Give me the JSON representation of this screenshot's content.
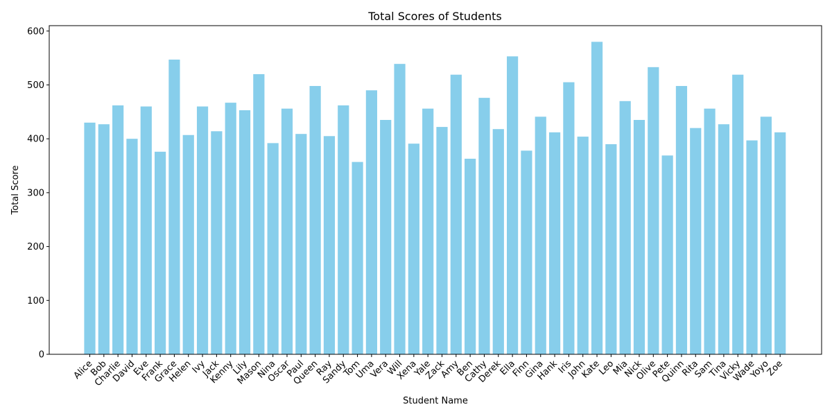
{
  "chart_data": {
    "type": "bar",
    "title": "Total Scores of Students",
    "xlabel": "Student Name",
    "ylabel": "Total Score",
    "ylim": [
      0,
      610
    ],
    "yticks": [
      0,
      100,
      200,
      300,
      400,
      500,
      600
    ],
    "bar_color": "#87ceeb",
    "grid": false,
    "categories": [
      "Alice",
      "Bob",
      "Charlie",
      "David",
      "Eve",
      "Frank",
      "Grace",
      "Helen",
      "Ivy",
      "Jack",
      "Kenny",
      "Lily",
      "Mason",
      "Nina",
      "Oscar",
      "Paul",
      "Queen",
      "Ray",
      "Sandy",
      "Tom",
      "Uma",
      "Vera",
      "Will",
      "Xena",
      "Yale",
      "Zack",
      "Amy",
      "Ben",
      "Cathy",
      "Derek",
      "Ella",
      "Finn",
      "Gina",
      "Hank",
      "Iris",
      "John",
      "Kate",
      "Leo",
      "Mia",
      "Nick",
      "Olive",
      "Pete",
      "Quinn",
      "Rita",
      "Sam",
      "Tina",
      "Vicky",
      "Wade",
      "Yoyo",
      "Zoe"
    ],
    "values": [
      430,
      427,
      462,
      400,
      460,
      376,
      547,
      407,
      460,
      414,
      467,
      453,
      520,
      392,
      456,
      409,
      498,
      405,
      462,
      357,
      490,
      435,
      539,
      391,
      456,
      422,
      519,
      363,
      476,
      418,
      553,
      378,
      441,
      412,
      505,
      404,
      580,
      390,
      470,
      435,
      533,
      369,
      498,
      420,
      456,
      427,
      519,
      397,
      441,
      412
    ]
  }
}
